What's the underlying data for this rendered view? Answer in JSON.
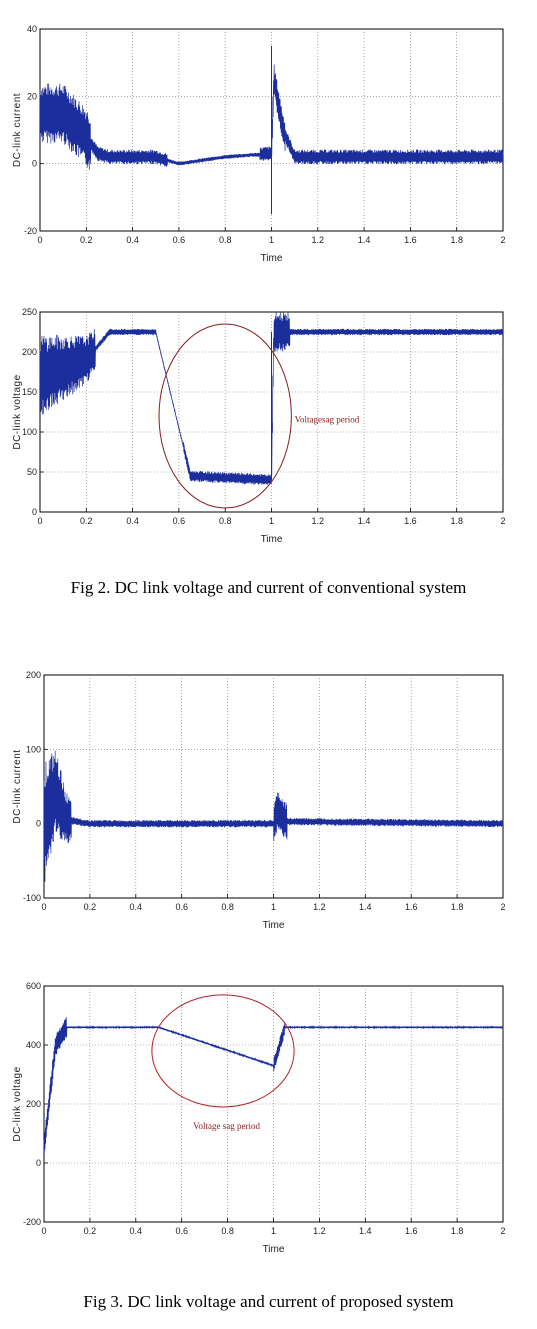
{
  "chart_data": [
    {
      "type": "line",
      "xlabel": "Time",
      "ylabel": "DC-link current",
      "xlim": [
        0,
        2
      ],
      "ylim": [
        -20,
        40
      ],
      "xticks": [
        "0",
        "0.2",
        "0.4",
        "0.6",
        "0.8",
        "1",
        "1.2",
        "1.4",
        "1.6",
        "1.8",
        "2"
      ],
      "yticks": [
        "-20",
        "0",
        "20",
        "40"
      ],
      "grid": true,
      "color": "#1c2e9c",
      "series": [
        {
          "x": [
            0,
            0.1,
            0.2,
            0.25,
            0.3,
            0.5,
            0.6,
            0.8,
            1.0,
            1.01,
            1.05,
            1.1,
            2.0
          ],
          "y": [
            15,
            15,
            8,
            3,
            2,
            2,
            0,
            2,
            3,
            25,
            10,
            2,
            2
          ]
        }
      ]
    },
    {
      "type": "line",
      "xlabel": "Time",
      "ylabel": "DC-link voltage",
      "xlim": [
        0,
        2
      ],
      "ylim": [
        0,
        250
      ],
      "xticks": [
        "0",
        "0.2",
        "0.4",
        "0.6",
        "0.8",
        "1",
        "1.2",
        "1.4",
        "1.6",
        "1.8",
        "2"
      ],
      "yticks": [
        "0",
        "50",
        "100",
        "150",
        "200",
        "250"
      ],
      "grid": true,
      "color": "#1c2e9c",
      "annotation": "Voltagesag period",
      "series": [
        {
          "x": [
            0,
            0.2,
            0.3,
            0.5,
            0.65,
            1.0,
            1.01,
            1.05,
            2.0
          ],
          "y": [
            170,
            190,
            225,
            225,
            45,
            40,
            225,
            225,
            225
          ]
        }
      ]
    },
    {
      "type": "line",
      "xlabel": "Time",
      "ylabel": "DC-link current",
      "xlim": [
        0,
        2
      ],
      "ylim": [
        -100,
        200
      ],
      "xticks": [
        "0",
        "0.2",
        "0.4",
        "0.6",
        "0.8",
        "1",
        "1.2",
        "1.4",
        "1.6",
        "1.8",
        "2"
      ],
      "yticks": [
        "-100",
        "0",
        "100",
        "200"
      ],
      "grid": true,
      "color": "#1c2e9c",
      "series": [
        {
          "x": [
            0,
            0.05,
            0.1,
            0.2,
            1.0,
            1.02,
            1.05,
            2.0
          ],
          "y": [
            0,
            40,
            5,
            0,
            0,
            20,
            3,
            0
          ]
        }
      ]
    },
    {
      "type": "line",
      "xlabel": "Time",
      "ylabel": "DC-link voltage",
      "xlim": [
        0,
        2
      ],
      "ylim": [
        -200,
        600
      ],
      "xticks": [
        "0",
        "0.2",
        "0.4",
        "0.6",
        "0.8",
        "1",
        "1.2",
        "1.4",
        "1.6",
        "1.8",
        "2"
      ],
      "yticks": [
        "-200",
        "0",
        "200",
        "400",
        "600"
      ],
      "grid": true,
      "color": "#1c2e9c",
      "annotation": "Voltage sag period",
      "series": [
        {
          "x": [
            0,
            0.05,
            0.1,
            0.5,
            1.0,
            1.05,
            2.0
          ],
          "y": [
            50,
            400,
            460,
            460,
            330,
            460,
            460
          ]
        }
      ]
    }
  ],
  "captions": {
    "fig2": "Fig 2. DC link voltage and current of conventional system",
    "fig3": "Fig 3. DC link voltage and current of proposed system"
  }
}
